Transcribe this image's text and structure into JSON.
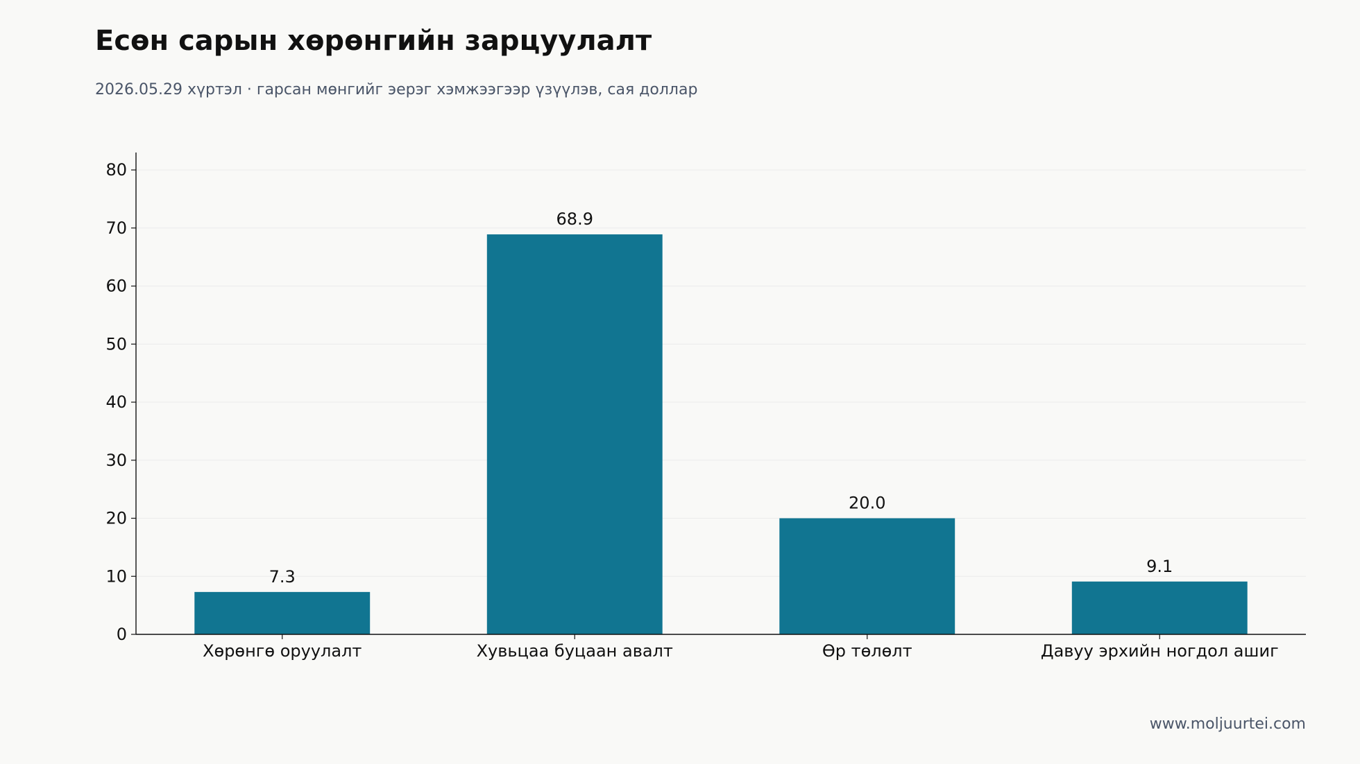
{
  "header": {
    "title": "Есөн сарын хөрөнгийн зарцуулалт",
    "subtitle": "2026.05.29 хүртэл · гарсан мөнгийг эерэг хэмжээгээр үзүүлэв, сая доллар"
  },
  "footer": {
    "source": "www.moljuurtei.com"
  },
  "colors": {
    "bar": "#117591",
    "grid": "#ebebeb",
    "axis": "#111111",
    "background": "#f9f9f7"
  },
  "chart_data": {
    "type": "bar",
    "categories": [
      "Хөрөнгө оруулалт",
      "Хувьцаа буцаан авалт",
      "Өр төлөлт",
      "Давуу эрхийн ногдол ашиг"
    ],
    "values": [
      7.3,
      68.9,
      20.0,
      9.1
    ],
    "value_labels": [
      "7.3",
      "68.9",
      "20.0",
      "9.1"
    ],
    "ylim": [
      0,
      83
    ],
    "yticks": [
      0,
      10,
      20,
      30,
      40,
      50,
      60,
      70,
      80
    ],
    "grid": true
  }
}
